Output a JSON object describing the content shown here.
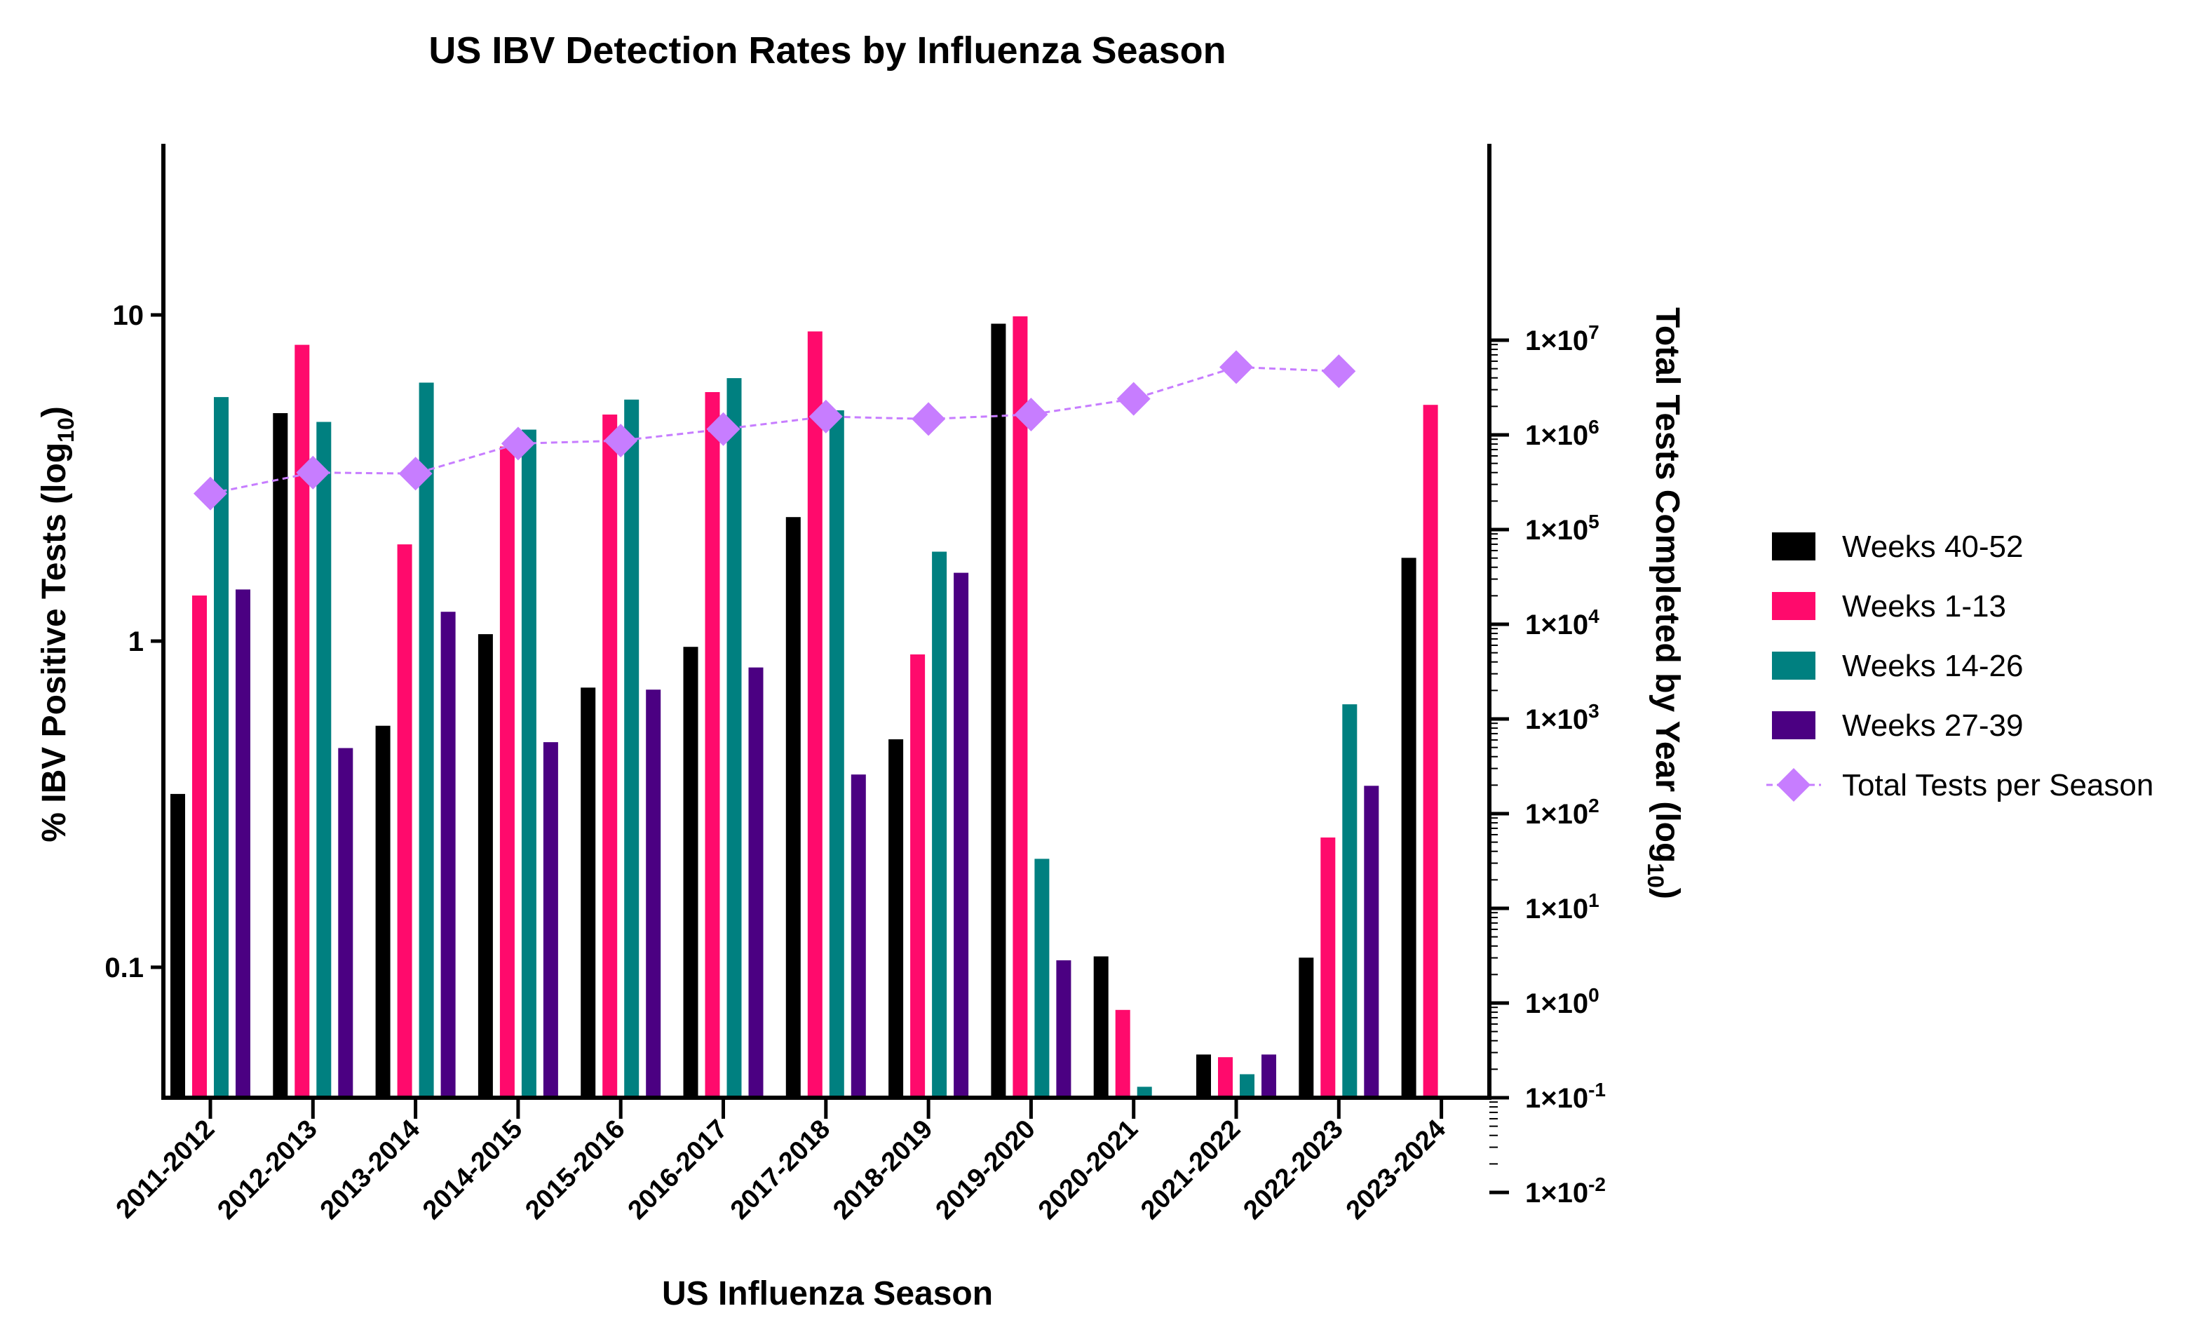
{
  "chart_data": {
    "type": "bar",
    "title": "US IBV Detection Rates by Influenza Season",
    "xlabel": "US Influenza Season",
    "ylabel": "% IBV Positive Tests (log10)",
    "ylabel_main": "% IBV Positive Tests (log",
    "ylabel_sub": "10",
    "ylabel_close": ")",
    "y2label": "Total Tests Completed by Year (log10)",
    "y2label_main": "Total Tests Completed by Year (log",
    "y2label_sub": "10",
    "y2label_close": ")",
    "yscale": "log",
    "ylim": [
      0.04,
      40
    ],
    "y_ticks": [
      {
        "value": 0.1,
        "label": "0.1"
      },
      {
        "value": 1,
        "label": "1"
      },
      {
        "value": 10,
        "label": "10"
      }
    ],
    "y2scale": "log",
    "y2lim": [
      0.000144,
      10000000
    ],
    "y2_ticks": [
      {
        "value": 10000000,
        "base": "1×10",
        "exp": "7"
      },
      {
        "value": 1000000,
        "base": "1×10",
        "exp": "6"
      },
      {
        "value": 100000,
        "base": "1×10",
        "exp": "5"
      },
      {
        "value": 10000,
        "base": "1×10",
        "exp": "4"
      },
      {
        "value": 1000,
        "base": "1×10",
        "exp": "3"
      },
      {
        "value": 100,
        "base": "1×10",
        "exp": "2"
      },
      {
        "value": 10,
        "base": "1×10",
        "exp": "1"
      },
      {
        "value": 1,
        "base": "1×10",
        "exp": "0"
      },
      {
        "value": 0.1,
        "base": "1×10",
        "exp": "-1"
      },
      {
        "value": 0.01,
        "base": "1×10",
        "exp": "-2"
      }
    ],
    "categories": [
      "2011-2012",
      "2012-2013",
      "2013-2014",
      "2014-2015",
      "2015-2016",
      "2016-2017",
      "2017-2018",
      "2018-2019",
      "2019-2020",
      "2020-2021",
      "2021-2022",
      "2022-2023",
      "2023-2024"
    ],
    "series": [
      {
        "name": "Weeks 40-52",
        "color": "#000000",
        "values": [
          0.34,
          5.0,
          0.55,
          1.05,
          0.72,
          0.96,
          2.4,
          0.5,
          9.4,
          0.108,
          0.054,
          0.107,
          1.8
        ]
      },
      {
        "name": "Weeks 1-13",
        "color": "#ff0a6c",
        "values": [
          1.38,
          8.1,
          1.98,
          3.95,
          4.95,
          5.8,
          8.9,
          0.91,
          9.9,
          0.074,
          0.053,
          0.25,
          5.3
        ]
      },
      {
        "name": "Weeks 14-26",
        "color": "#008080",
        "values": [
          5.6,
          4.7,
          6.2,
          4.45,
          5.5,
          6.4,
          5.1,
          1.88,
          0.215,
          0.043,
          0.047,
          0.64,
          null
        ]
      },
      {
        "name": "Weeks 27-39",
        "color": "#4b0082",
        "values": [
          1.44,
          0.47,
          1.23,
          0.49,
          0.71,
          0.83,
          0.39,
          1.62,
          0.105,
          null,
          0.054,
          0.36,
          null
        ]
      }
    ],
    "line_series": {
      "name": "Total Tests per Season",
      "color": "#c77dff",
      "values": [
        240000,
        400000,
        390000,
        810000,
        870000,
        1150000,
        1560000,
        1470000,
        1640000,
        2400000,
        5200000,
        4700000,
        null
      ]
    },
    "legend_position": "right"
  }
}
